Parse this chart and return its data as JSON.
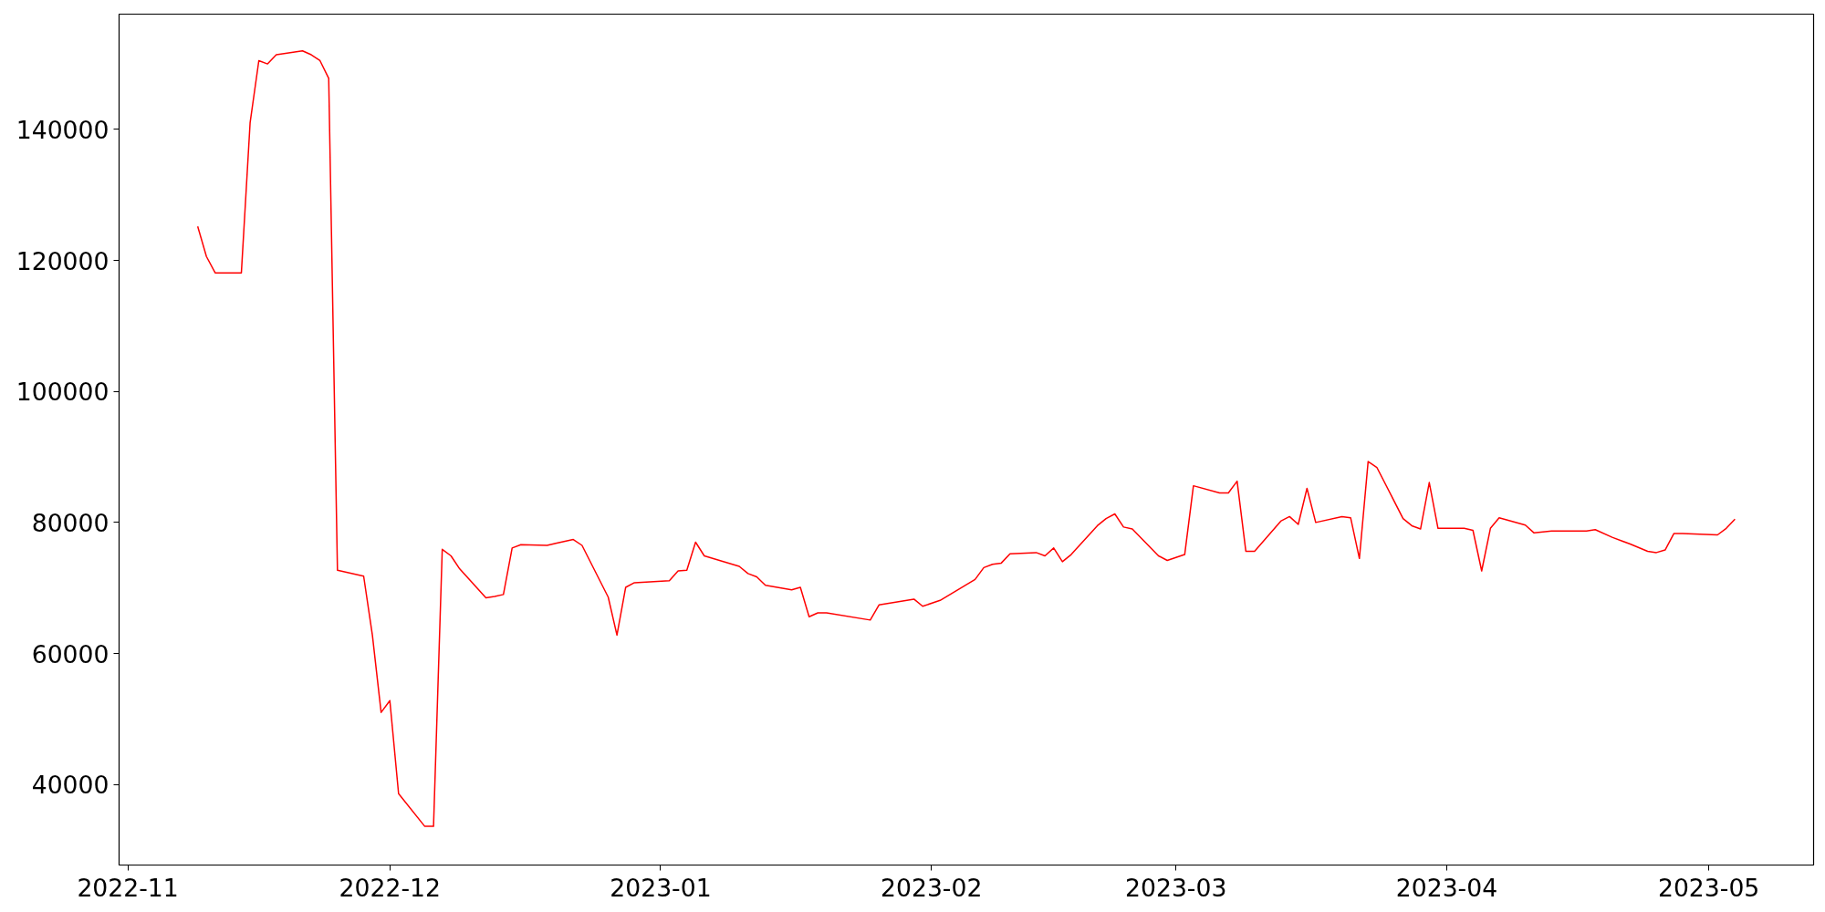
{
  "chart_data": {
    "type": "line",
    "x": [
      "2022-11-09",
      "2022-11-10",
      "2022-11-11",
      "2022-11-14",
      "2022-11-15",
      "2022-11-16",
      "2022-11-17",
      "2022-11-18",
      "2022-11-21",
      "2022-11-22",
      "2022-11-23",
      "2022-11-24",
      "2022-11-25",
      "2022-11-28",
      "2022-11-29",
      "2022-11-30",
      "2022-12-01",
      "2022-12-02",
      "2022-12-05",
      "2022-12-06",
      "2022-12-07",
      "2022-12-08",
      "2022-12-09",
      "2022-12-12",
      "2022-12-13",
      "2022-12-14",
      "2022-12-15",
      "2022-12-16",
      "2022-12-19",
      "2022-12-20",
      "2022-12-22",
      "2022-12-23",
      "2022-12-26",
      "2022-12-27",
      "2022-12-28",
      "2022-12-29",
      "2023-01-02",
      "2023-01-03",
      "2023-01-04",
      "2023-01-05",
      "2023-01-06",
      "2023-01-10",
      "2023-01-11",
      "2023-01-12",
      "2023-01-13",
      "2023-01-16",
      "2023-01-17",
      "2023-01-18",
      "2023-01-19",
      "2023-01-20",
      "2023-01-25",
      "2023-01-26",
      "2023-01-30",
      "2023-01-31",
      "2023-02-02",
      "2023-02-06",
      "2023-02-07",
      "2023-02-08",
      "2023-02-09",
      "2023-02-10",
      "2023-02-13",
      "2023-02-14",
      "2023-02-15",
      "2023-02-16",
      "2023-02-17",
      "2023-02-20",
      "2023-02-21",
      "2023-02-22",
      "2023-02-23",
      "2023-02-24",
      "2023-02-27",
      "2023-02-28",
      "2023-03-02",
      "2023-03-03",
      "2023-03-06",
      "2023-03-07",
      "2023-03-08",
      "2023-03-09",
      "2023-03-10",
      "2023-03-13",
      "2023-03-14",
      "2023-03-15",
      "2023-03-16",
      "2023-03-17",
      "2023-03-20",
      "2023-03-21",
      "2023-03-22",
      "2023-03-23",
      "2023-03-24",
      "2023-03-27",
      "2023-03-28",
      "2023-03-29",
      "2023-03-30",
      "2023-03-31",
      "2023-04-03",
      "2023-04-04",
      "2023-04-05",
      "2023-04-06",
      "2023-04-07",
      "2023-04-10",
      "2023-04-11",
      "2023-04-13",
      "2023-04-17",
      "2023-04-18",
      "2023-04-20",
      "2023-04-22",
      "2023-04-24",
      "2023-04-25",
      "2023-04-26",
      "2023-04-27",
      "2023-04-28",
      "2023-05-02",
      "2023-05-03",
      "2023-05-04"
    ],
    "series": [
      {
        "color": "#ff0000",
        "values": [
          125200,
          120600,
          118100,
          118100,
          141000,
          150500,
          150000,
          151400,
          152000,
          151400,
          150500,
          147800,
          72700,
          71800,
          62800,
          51000,
          52800,
          38600,
          33600,
          33600,
          75900,
          74900,
          72900,
          68500,
          68700,
          69000,
          76100,
          76600,
          76500,
          76800,
          77400,
          76500,
          68600,
          62800,
          70100,
          70800,
          71100,
          72600,
          72700,
          77000,
          74900,
          73300,
          72200,
          71700,
          70400,
          69700,
          70100,
          65600,
          66200,
          66200,
          65100,
          67400,
          68300,
          67200,
          68100,
          71300,
          73100,
          73600,
          73800,
          75200,
          75400,
          74900,
          76100,
          74000,
          75100,
          79500,
          80600,
          81300,
          79300,
          79000,
          74900,
          74200,
          75100,
          85600,
          84500,
          84500,
          86300,
          75600,
          75600,
          80200,
          80900,
          79700,
          85200,
          80000,
          80900,
          80700,
          74500,
          89300,
          88400,
          80600,
          79500,
          79000,
          86100,
          79100,
          79100,
          78800,
          72600,
          79100,
          80700,
          79600,
          78400,
          78700,
          78700,
          78900,
          77700,
          76700,
          75600,
          75400,
          75800,
          78300,
          78300,
          78100,
          79100,
          80500
        ]
      }
    ],
    "xlim": [
      "2022-10-31",
      "2023-05-13"
    ],
    "xticks": [
      {
        "value": "2022-11-01",
        "label": "2022-11"
      },
      {
        "value": "2022-12-01",
        "label": "2022-12"
      },
      {
        "value": "2023-01-01",
        "label": "2023-01"
      },
      {
        "value": "2023-02-01",
        "label": "2023-02"
      },
      {
        "value": "2023-03-01",
        "label": "2023-03"
      },
      {
        "value": "2023-04-01",
        "label": "2023-04"
      },
      {
        "value": "2023-05-01",
        "label": "2023-05"
      }
    ],
    "ylim": [
      27700,
      157600
    ],
    "yticks": [
      40000,
      60000,
      80000,
      100000,
      120000,
      140000
    ],
    "grid": false,
    "marker": "none",
    "line_style": "solid"
  }
}
